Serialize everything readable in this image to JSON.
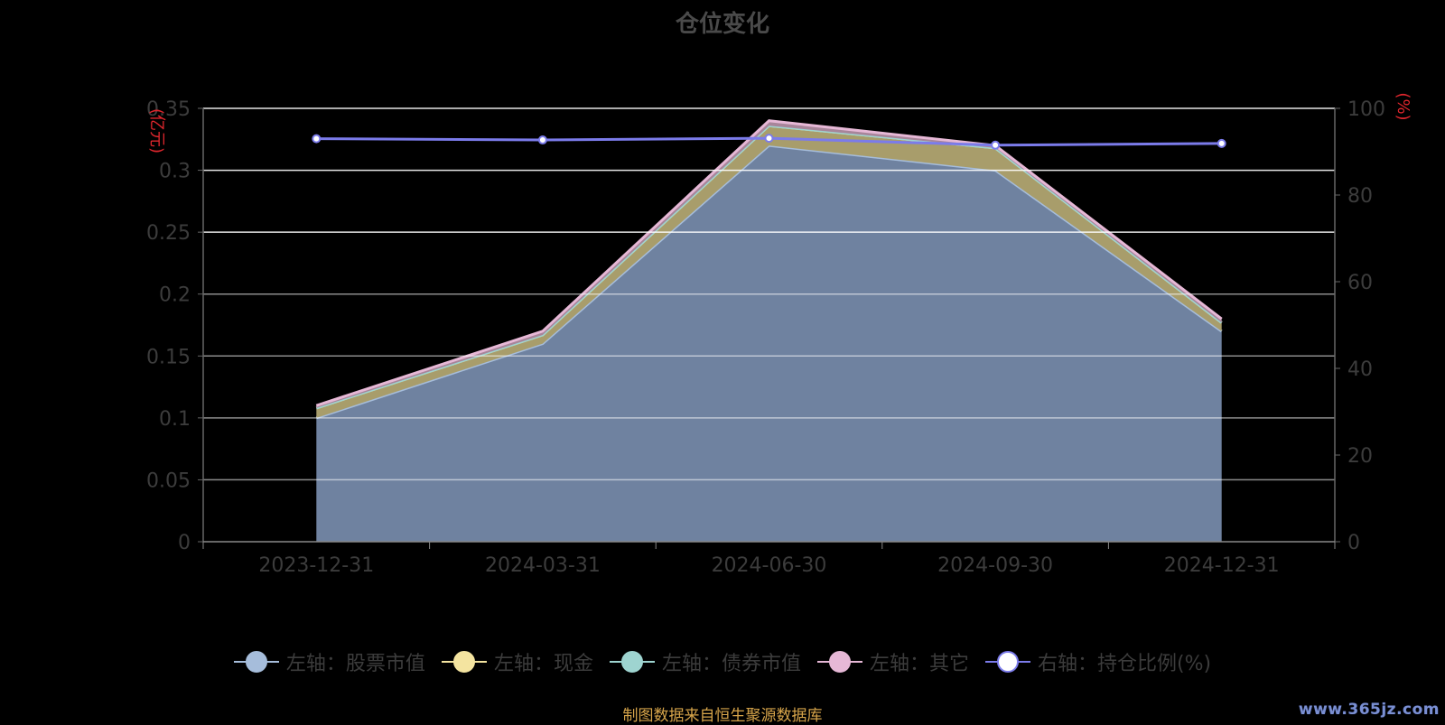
{
  "title": "仓位变化",
  "source_note": "制图数据来自恒生聚源数据库",
  "watermark": "www.365jz.com",
  "colors": {
    "stock": "#a6bddb",
    "cash": "#f4e4a0",
    "bond": "#9ed4d0",
    "other": "#e6b8d6",
    "ratio": "#7b7bea",
    "axis_unit": "#e0262d",
    "grid": "#ffffff",
    "axis_text": "#3c3c3c"
  },
  "chart_data": {
    "type": "area",
    "title": "仓位变化",
    "categories": [
      "2023-12-31",
      "2024-03-31",
      "2024-06-30",
      "2024-09-30",
      "2024-12-31"
    ],
    "left_axis": {
      "unit": "(亿元)",
      "ylim": [
        0,
        0.35
      ],
      "ticks": [
        "0",
        "0.05",
        "0.1",
        "0.15",
        "0.2",
        "0.25",
        "0.3",
        "0.35"
      ]
    },
    "right_axis": {
      "unit": "(%)",
      "ylim": [
        0,
        100
      ],
      "ticks": [
        "0",
        "20",
        "40",
        "60",
        "80",
        "100"
      ]
    },
    "stacked": true,
    "series": [
      {
        "name": "左轴：股票市值",
        "axis": "left",
        "type": "area",
        "color": "#a6bddb",
        "values": [
          0.1,
          0.16,
          0.32,
          0.3,
          0.17
        ]
      },
      {
        "name": "左轴：现金",
        "axis": "left",
        "type": "area",
        "color": "#f4e4a0",
        "values": [
          0.008,
          0.007,
          0.016,
          0.018,
          0.007
        ]
      },
      {
        "name": "左轴：债券市值",
        "axis": "left",
        "type": "area",
        "color": "#9ed4d0",
        "values": [
          0,
          0,
          0,
          0,
          0
        ]
      },
      {
        "name": "左轴：其它",
        "axis": "left",
        "type": "area",
        "color": "#e6b8d6",
        "values": [
          0.002,
          0.003,
          0.004,
          0.002,
          0.003
        ]
      },
      {
        "name": "右轴：持仓比例(%)",
        "axis": "right",
        "type": "line",
        "color": "#7b7bea",
        "values": [
          93.0,
          92.7,
          93.1,
          91.5,
          91.9
        ]
      }
    ],
    "grid": true,
    "legend_position": "bottom"
  }
}
